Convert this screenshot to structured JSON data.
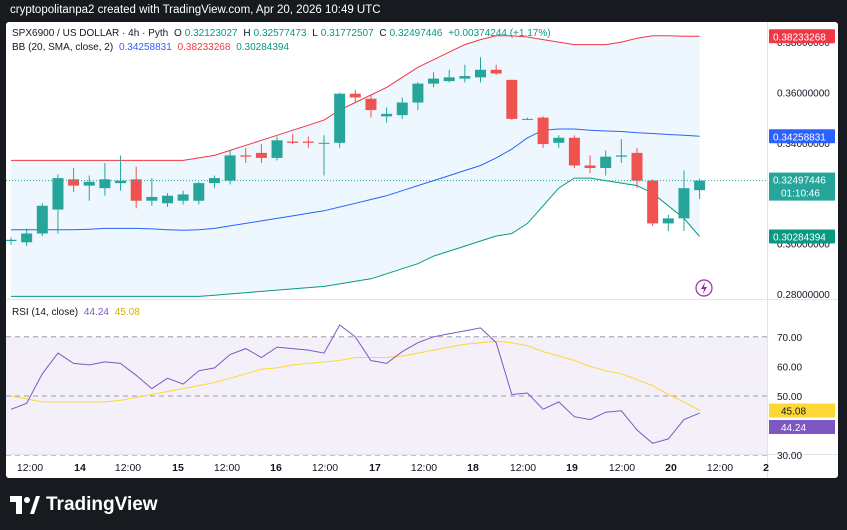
{
  "header": {
    "credit": "cryptopolitanpa2 created with TradingView.com, Apr 20, 2026 10:49 UTC"
  },
  "legend": {
    "symbol": "SPX6900 / US DOLLAR · 4h · Pyth",
    "o_label": "O",
    "o": "0.32123027",
    "h_label": "H",
    "h": "0.32577473",
    "l_label": "L",
    "l": "0.31772507",
    "c_label": "C",
    "c": "0.32497446",
    "change": "+0.00374244 (+1.17%)",
    "bb_label": "BB (20, SMA, close, 2)",
    "bb_mid": "0.34258831",
    "bb_up": "0.38233268",
    "bb_low": "0.30284394",
    "rsi_label": "RSI (14, close)",
    "rsi": "44.24",
    "rsi_ma": "45.08"
  },
  "currency": "USD",
  "colors": {
    "up": "#26a69a",
    "down": "#ef5350",
    "bb_mid": "#2962ff",
    "bb_upper": "#f23645",
    "bb_lower": "#089981",
    "rsi": "#7e57c2",
    "rsi_ma": "#fdd835"
  },
  "price_axis": [
    "0.38000000",
    "0.36000000",
    "0.34000000",
    "0.32000000",
    "0.30000000",
    "0.28000000"
  ],
  "price_tags": {
    "upper": "0.38233268",
    "mid": "0.34258831",
    "close": "0.32497446",
    "countdown": "01:10:46",
    "lower": "0.30284394"
  },
  "rsi_axis": [
    "70.00",
    "60.00",
    "50.00",
    "40.00",
    "30.00"
  ],
  "rsi_tags": {
    "ma": "45.08",
    "rsi": "44.24"
  },
  "time_axis": [
    "12:00",
    "14",
    "12:00",
    "15",
    "12:00",
    "16",
    "12:00",
    "17",
    "12:00",
    "18",
    "12:00",
    "19",
    "12:00",
    "20",
    "12:00",
    "2"
  ],
  "brand": {
    "name": "TradingView"
  },
  "chart_data": [
    {
      "type": "candlestick",
      "title": "SPX6900 / US DOLLAR · 4h · Pyth",
      "ylim": [
        0.276,
        0.384
      ],
      "candles": [
        {
          "o": 0.301,
          "h": 0.3025,
          "l": 0.2995,
          "c": 0.3015
        },
        {
          "o": 0.3005,
          "h": 0.306,
          "l": 0.299,
          "c": 0.304
        },
        {
          "o": 0.304,
          "h": 0.316,
          "l": 0.303,
          "c": 0.315
        },
        {
          "o": 0.3135,
          "h": 0.3275,
          "l": 0.304,
          "c": 0.326
        },
        {
          "o": 0.3255,
          "h": 0.33,
          "l": 0.3205,
          "c": 0.323
        },
        {
          "o": 0.323,
          "h": 0.327,
          "l": 0.317,
          "c": 0.3245
        },
        {
          "o": 0.322,
          "h": 0.332,
          "l": 0.319,
          "c": 0.3255
        },
        {
          "o": 0.324,
          "h": 0.335,
          "l": 0.321,
          "c": 0.325
        },
        {
          "o": 0.3255,
          "h": 0.3305,
          "l": 0.314,
          "c": 0.317
        },
        {
          "o": 0.317,
          "h": 0.326,
          "l": 0.315,
          "c": 0.3185
        },
        {
          "o": 0.316,
          "h": 0.32,
          "l": 0.3145,
          "c": 0.319
        },
        {
          "o": 0.317,
          "h": 0.321,
          "l": 0.3155,
          "c": 0.3195
        },
        {
          "o": 0.317,
          "h": 0.3245,
          "l": 0.3155,
          "c": 0.324
        },
        {
          "o": 0.324,
          "h": 0.327,
          "l": 0.322,
          "c": 0.326
        },
        {
          "o": 0.325,
          "h": 0.337,
          "l": 0.3235,
          "c": 0.335
        },
        {
          "o": 0.335,
          "h": 0.338,
          "l": 0.332,
          "c": 0.3345
        },
        {
          "o": 0.336,
          "h": 0.3395,
          "l": 0.332,
          "c": 0.334
        },
        {
          "o": 0.334,
          "h": 0.3425,
          "l": 0.333,
          "c": 0.341
        },
        {
          "o": 0.3405,
          "h": 0.3435,
          "l": 0.3395,
          "c": 0.34
        },
        {
          "o": 0.3405,
          "h": 0.3425,
          "l": 0.338,
          "c": 0.34
        },
        {
          "o": 0.34,
          "h": 0.343,
          "l": 0.327,
          "c": 0.34
        },
        {
          "o": 0.34,
          "h": 0.36,
          "l": 0.338,
          "c": 0.3595
        },
        {
          "o": 0.3595,
          "h": 0.361,
          "l": 0.356,
          "c": 0.358
        },
        {
          "o": 0.3575,
          "h": 0.359,
          "l": 0.35,
          "c": 0.353
        },
        {
          "o": 0.3505,
          "h": 0.354,
          "l": 0.348,
          "c": 0.3515
        },
        {
          "o": 0.351,
          "h": 0.358,
          "l": 0.3495,
          "c": 0.356
        },
        {
          "o": 0.356,
          "h": 0.364,
          "l": 0.353,
          "c": 0.3635
        },
        {
          "o": 0.3635,
          "h": 0.368,
          "l": 0.362,
          "c": 0.3655
        },
        {
          "o": 0.3645,
          "h": 0.369,
          "l": 0.364,
          "c": 0.366
        },
        {
          "o": 0.3655,
          "h": 0.371,
          "l": 0.364,
          "c": 0.3665
        },
        {
          "o": 0.366,
          "h": 0.374,
          "l": 0.364,
          "c": 0.369
        },
        {
          "o": 0.369,
          "h": 0.371,
          "l": 0.367,
          "c": 0.3675
        },
        {
          "o": 0.365,
          "h": 0.365,
          "l": 0.349,
          "c": 0.3495
        },
        {
          "o": 0.3495,
          "h": 0.35,
          "l": 0.349,
          "c": 0.3495
        },
        {
          "o": 0.35,
          "h": 0.3505,
          "l": 0.338,
          "c": 0.3395
        },
        {
          "o": 0.34,
          "h": 0.343,
          "l": 0.338,
          "c": 0.342
        },
        {
          "o": 0.342,
          "h": 0.343,
          "l": 0.33,
          "c": 0.331
        },
        {
          "o": 0.331,
          "h": 0.335,
          "l": 0.328,
          "c": 0.33
        },
        {
          "o": 0.33,
          "h": 0.337,
          "l": 0.327,
          "c": 0.3345
        },
        {
          "o": 0.3345,
          "h": 0.3415,
          "l": 0.332,
          "c": 0.335
        },
        {
          "o": 0.336,
          "h": 0.338,
          "l": 0.322,
          "c": 0.325
        },
        {
          "o": 0.325,
          "h": 0.3255,
          "l": 0.307,
          "c": 0.308
        },
        {
          "o": 0.308,
          "h": 0.3115,
          "l": 0.305,
          "c": 0.31
        },
        {
          "o": 0.31,
          "h": 0.329,
          "l": 0.305,
          "c": 0.322
        },
        {
          "o": 0.3212,
          "h": 0.3258,
          "l": 0.3177,
          "c": 0.325
        }
      ],
      "bb_upper": [
        0.333,
        0.333,
        0.333,
        0.333,
        0.333,
        0.333,
        0.333,
        0.333,
        0.333,
        0.333,
        0.333,
        0.333,
        0.334,
        0.335,
        0.337,
        0.339,
        0.341,
        0.343,
        0.345,
        0.347,
        0.349,
        0.353,
        0.356,
        0.359,
        0.362,
        0.366,
        0.37,
        0.373,
        0.376,
        0.379,
        0.381,
        0.3825,
        0.3825,
        0.382,
        0.381,
        0.38,
        0.379,
        0.379,
        0.379,
        0.38,
        0.3815,
        0.3825,
        0.3825,
        0.3823,
        0.3823
      ],
      "bb_mid": [
        0.3055,
        0.3055,
        0.3055,
        0.3055,
        0.3055,
        0.3057,
        0.306,
        0.306,
        0.306,
        0.3058,
        0.3055,
        0.3053,
        0.3055,
        0.306,
        0.307,
        0.308,
        0.309,
        0.31,
        0.311,
        0.312,
        0.313,
        0.3145,
        0.316,
        0.3175,
        0.319,
        0.321,
        0.323,
        0.325,
        0.327,
        0.329,
        0.331,
        0.334,
        0.3375,
        0.342,
        0.345,
        0.3455,
        0.3455,
        0.345,
        0.3447,
        0.3445,
        0.344,
        0.3437,
        0.3433,
        0.343,
        0.3426
      ],
      "bb_lower": [
        0.279,
        0.279,
        0.279,
        0.279,
        0.279,
        0.279,
        0.279,
        0.279,
        0.279,
        0.279,
        0.279,
        0.279,
        0.279,
        0.2795,
        0.28,
        0.2805,
        0.281,
        0.2815,
        0.282,
        0.2825,
        0.283,
        0.284,
        0.285,
        0.286,
        0.288,
        0.29,
        0.292,
        0.295,
        0.297,
        0.299,
        0.301,
        0.303,
        0.304,
        0.308,
        0.315,
        0.322,
        0.326,
        0.326,
        0.325,
        0.324,
        0.323,
        0.32,
        0.315,
        0.31,
        0.3028
      ]
    },
    {
      "type": "line",
      "title": "RSI (14, close)",
      "ylim": [
        27,
        75
      ],
      "series": [
        {
          "name": "RSI",
          "values": [
            45.5,
            47.5,
            57.5,
            64.5,
            61,
            60.5,
            61.5,
            61,
            57,
            52.5,
            56,
            54,
            58.5,
            59.5,
            64,
            66,
            63,
            66.5,
            66,
            65.5,
            64.5,
            74,
            70,
            62,
            61,
            65,
            68,
            70,
            71,
            72,
            73,
            68,
            50.5,
            51,
            45.5,
            48,
            43,
            42,
            44.5,
            45,
            38.5,
            34,
            35.5,
            42,
            44.2
          ]
        },
        {
          "name": "MA",
          "values": [
            50,
            49,
            48,
            48,
            48,
            48,
            48,
            48.5,
            49.5,
            50.5,
            51.5,
            52.5,
            53.5,
            54.5,
            56,
            57.5,
            59,
            59.5,
            60.5,
            61,
            61.5,
            62,
            63,
            63,
            63,
            63.5,
            64.5,
            65.5,
            66.5,
            67.5,
            68,
            68.5,
            68,
            67,
            65,
            63.5,
            62,
            60,
            58.5,
            57.5,
            55.5,
            53.5,
            50.5,
            48,
            45.1
          ]
        }
      ]
    }
  ]
}
